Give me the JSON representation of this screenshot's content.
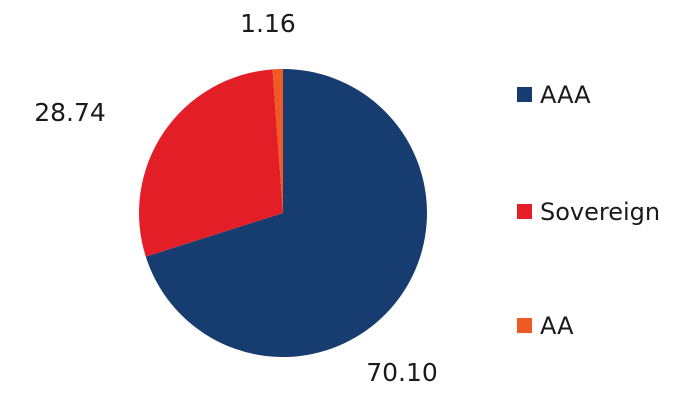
{
  "chart_data": {
    "type": "pie",
    "title": "",
    "start_angle": "12 o'clock",
    "direction": "clockwise",
    "legend_position": "right",
    "slices": [
      {
        "label": "AAA",
        "value": 70.1,
        "display": "70.10",
        "color": "#173c70"
      },
      {
        "label": "Sovereign",
        "value": 28.74,
        "display": "28.74",
        "color": "#e31e26"
      },
      {
        "label": "AA",
        "value": 1.16,
        "display": "1.16",
        "color": "#ef5a24"
      }
    ]
  }
}
